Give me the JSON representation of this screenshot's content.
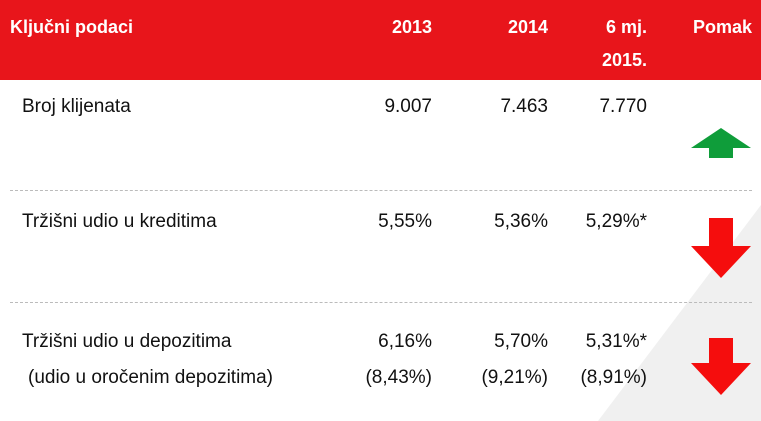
{
  "table": {
    "header": [
      "Ključni podaci",
      "2013",
      "2014",
      [
        "6 mj.",
        "2015."
      ],
      "Pomak"
    ],
    "rows": [
      {
        "label": "Broj klijenata",
        "values": [
          "9.007",
          "7.463",
          "7.770"
        ],
        "trend": "up"
      },
      {
        "label": "Tržišni udio u kreditima",
        "values": [
          "5,55%",
          "5,36%",
          "5,29%*"
        ],
        "trend": "down"
      },
      {
        "label": "Tržišni udio u depozitima",
        "values": [
          "6,16%",
          "5,70%",
          "5,31%*"
        ],
        "trend": "down",
        "sub_label": "(udio u oročenim depozitima)",
        "sub_values": [
          "(8,43%)",
          "(9,21%)",
          "(8,91%)"
        ]
      }
    ]
  }
}
